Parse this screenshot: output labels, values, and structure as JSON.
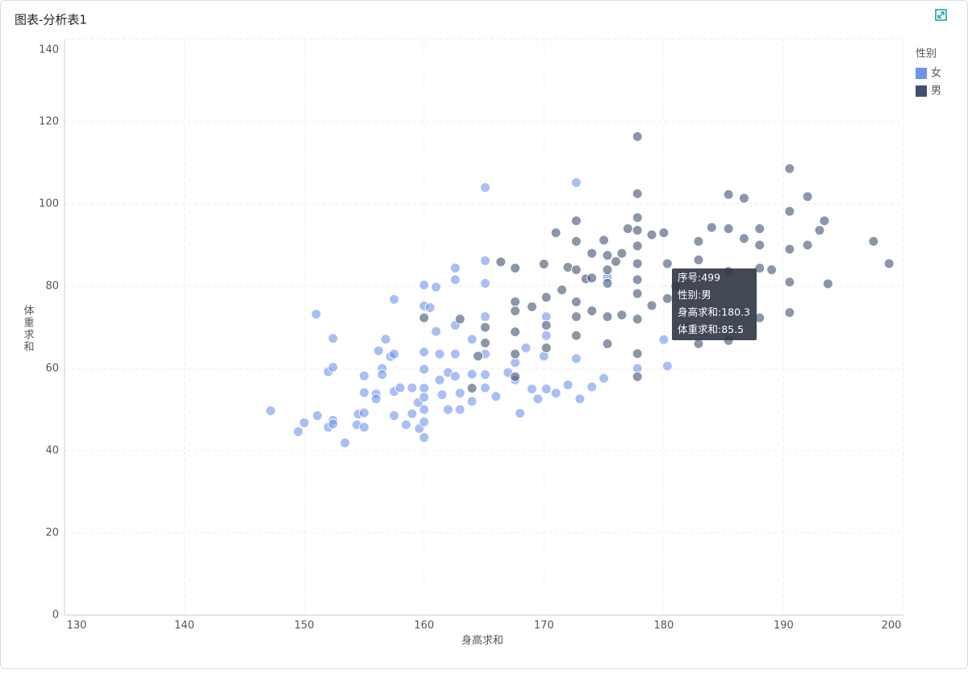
{
  "chart_data": {
    "type": "scatter",
    "title": "图表-分析表1",
    "x_label": "身高求和",
    "y_label": "体重求和",
    "legend_title": "性别",
    "legend_position": "top-right",
    "grid": true,
    "xlim": [
      130,
      200
    ],
    "xticks": [
      130,
      140,
      150,
      160,
      170,
      180,
      190,
      200
    ],
    "ylim": [
      0,
      140
    ],
    "yticks": [
      0,
      20,
      40,
      60,
      80,
      100,
      120,
      140
    ],
    "series": [
      {
        "name": "女",
        "color": "#6f94ec",
        "x": [
          147.2,
          149.5,
          150,
          151,
          151.1,
          152,
          152,
          152.4,
          152.4,
          152.4,
          152.4,
          153.4,
          154.4,
          154.5,
          155,
          155,
          155,
          155,
          156,
          156,
          156.2,
          156.5,
          156.5,
          156.8,
          157.2,
          157.5,
          157.5,
          157.5,
          157.5,
          158,
          158.5,
          159,
          159,
          159.5,
          159.6,
          160,
          160,
          160,
          160,
          160,
          160,
          160,
          160,
          160,
          160.5,
          161,
          161,
          161.3,
          161.3,
          161.5,
          162,
          162,
          162.6,
          162.6,
          162.6,
          162.6,
          162.6,
          163,
          163,
          164,
          164,
          164,
          165.1,
          165.1,
          165.1,
          165.1,
          165.1,
          165.1,
          165.1,
          166,
          167,
          167.6,
          167.6,
          168,
          168.5,
          169,
          169.5,
          170,
          170.2,
          170.2,
          170.2,
          171,
          172,
          172.7,
          172.7,
          173,
          174,
          175,
          175.3,
          177.8,
          180,
          180.3
        ],
        "y": [
          49.7,
          44.6,
          46.8,
          73.2,
          48.5,
          45.7,
          59.2,
          60.3,
          67.3,
          47.4,
          46.5,
          41.9,
          46.3,
          48.9,
          58.2,
          54.1,
          49.2,
          45.7,
          53.8,
          52.6,
          64.3,
          60,
          58.5,
          67.1,
          62.9,
          76.8,
          63.5,
          54.4,
          48.5,
          55.3,
          46.3,
          49,
          55.3,
          51.7,
          45.4,
          80.3,
          75.2,
          64,
          59.8,
          55.2,
          53,
          50,
          47,
          43.2,
          74.8,
          69,
          79.8,
          63.5,
          57.2,
          53.6,
          59,
          50,
          84.4,
          81.6,
          70.5,
          63.5,
          58.1,
          54,
          50,
          67.1,
          58.6,
          52,
          104,
          86.2,
          80.7,
          72.6,
          63.5,
          58.5,
          55.3,
          53.2,
          59,
          57.2,
          61.4,
          49.1,
          65,
          55,
          52.6,
          63,
          72.6,
          68,
          55,
          54,
          56,
          105.2,
          62.4,
          52.6,
          55.5,
          57.6,
          82.2,
          60,
          67,
          60.6
        ]
      },
      {
        "name": "男",
        "color": "#3f5070",
        "x": [
          160,
          163,
          164,
          164.5,
          165.1,
          165.1,
          166.4,
          167.6,
          167.6,
          167.6,
          167.6,
          167.6,
          167.6,
          169,
          170,
          170.2,
          170.2,
          170.2,
          171,
          171.5,
          172,
          172.7,
          172.7,
          172.7,
          172.7,
          172.7,
          172.7,
          173.5,
          174,
          174,
          174,
          175,
          175.3,
          175.3,
          175.3,
          175.3,
          175.3,
          176,
          176.5,
          176.5,
          177,
          177.8,
          177.8,
          177.8,
          177.8,
          177.8,
          177.8,
          177.8,
          177.8,
          177.8,
          177.8,
          177.8,
          179,
          179,
          180,
          180.3,
          180.3,
          181,
          182,
          182.9,
          182.9,
          182.9,
          184,
          185.4,
          185.4,
          185.4,
          185.4,
          186.7,
          186.7,
          188,
          188,
          188,
          188,
          189,
          190.5,
          190.5,
          190.5,
          190.5,
          190.5,
          192,
          192,
          193,
          193.4,
          193.7,
          197.5,
          198.8
        ],
        "y": [
          72.3,
          72,
          55.2,
          63,
          66.2,
          70,
          85.9,
          84.4,
          76.2,
          74,
          68.9,
          63.5,
          58,
          75,
          85.4,
          77.3,
          70.5,
          65,
          93,
          79.1,
          84.6,
          95.9,
          90.9,
          84,
          76.2,
          72.6,
          68,
          81.8,
          88,
          82,
          74,
          91.2,
          87.5,
          84,
          80.7,
          72.6,
          66,
          86,
          88,
          73,
          94,
          116.4,
          102.5,
          96.7,
          93.6,
          89.8,
          85.5,
          81.6,
          78.2,
          72,
          63.6,
          58,
          92.5,
          75.3,
          93,
          85.5,
          77,
          80,
          70,
          90.9,
          86.4,
          66,
          94.3,
          102.3,
          94,
          83.6,
          66.8,
          101.4,
          91.6,
          94,
          90,
          84.4,
          72.3,
          84,
          108.6,
          98.2,
          89,
          81,
          73.6,
          101.8,
          90,
          93.6,
          95.9,
          80.6,
          90.9,
          85.5
        ]
      }
    ],
    "tooltip": {
      "lines": [
        "序号:499",
        "性别:男",
        "身高求和:180.3",
        "体重求和:85.5"
      ]
    }
  }
}
